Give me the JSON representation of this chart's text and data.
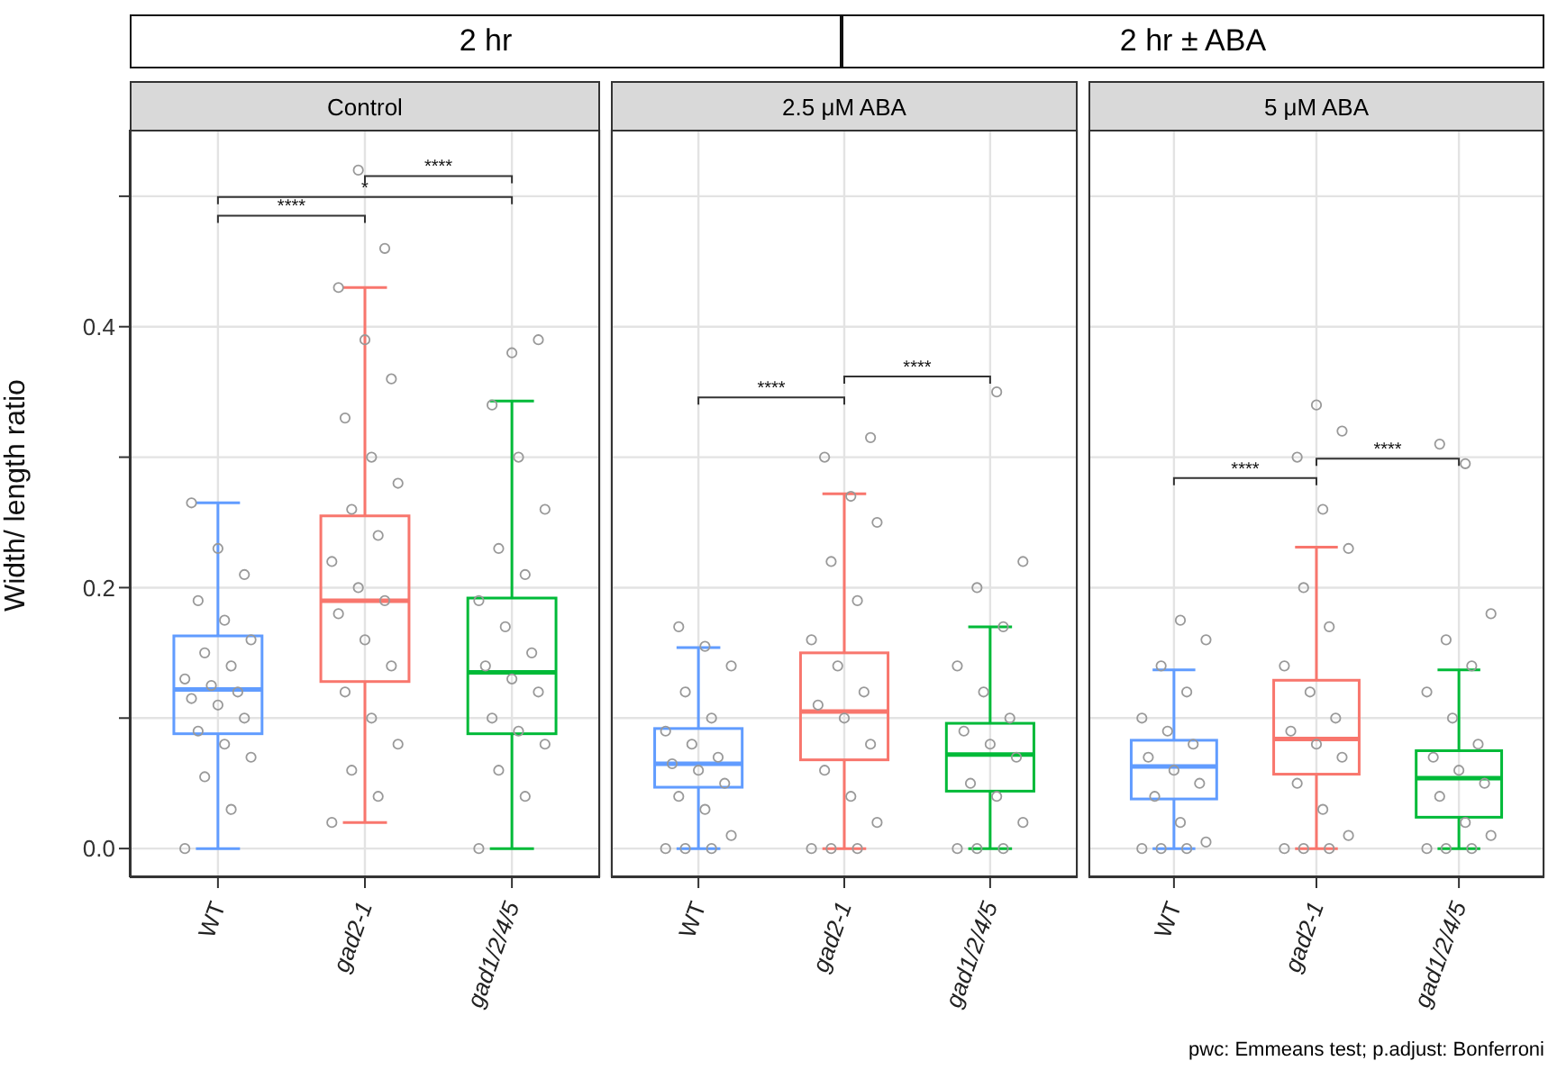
{
  "chart_data": [
    {
      "type": "box",
      "title": "Control",
      "ylabel": "Width/ length ratio",
      "categories": [
        "WT",
        "gad2-1",
        "gad1/2/4/5"
      ],
      "colors": [
        "#619cff",
        "#f8766d",
        "#00ba38"
      ],
      "boxes": [
        {
          "low": 0,
          "q1": 0.088,
          "median": 0.122,
          "q3": 0.163,
          "high": 0.265
        },
        {
          "low": 0.02,
          "q1": 0.128,
          "median": 0.19,
          "q3": 0.255,
          "high": 0.43
        },
        {
          "low": 0,
          "q1": 0.088,
          "median": 0.135,
          "q3": 0.192,
          "high": 0.343
        }
      ],
      "series": [
        {
          "type": "scatter",
          "color": "#999999",
          "x": [
            "WT",
            "WT",
            "WT",
            "WT",
            "WT",
            "WT",
            "WT",
            "WT",
            "WT",
            "WT",
            "WT",
            "WT",
            "WT",
            "WT",
            "WT",
            "WT",
            "WT",
            "WT",
            "WT",
            "WT",
            "gad2-1",
            "gad2-1",
            "gad2-1",
            "gad2-1",
            "gad2-1",
            "gad2-1",
            "gad2-1",
            "gad2-1",
            "gad2-1",
            "gad2-1",
            "gad2-1",
            "gad2-1",
            "gad2-1",
            "gad2-1",
            "gad2-1",
            "gad2-1",
            "gad2-1",
            "gad2-1",
            "gad2-1",
            "gad2-1",
            "gad2-1",
            "gad2-1",
            "gad1/2/4/5",
            "gad1/2/4/5",
            "gad1/2/4/5",
            "gad1/2/4/5",
            "gad1/2/4/5",
            "gad1/2/4/5",
            "gad1/2/4/5",
            "gad1/2/4/5",
            "gad1/2/4/5",
            "gad1/2/4/5",
            "gad1/2/4/5",
            "gad1/2/4/5",
            "gad1/2/4/5",
            "gad1/2/4/5",
            "gad1/2/4/5",
            "gad1/2/4/5",
            "gad1/2/4/5",
            "gad1/2/4/5",
            "gad1/2/4/5"
          ],
          "values": [
            0,
            0.03,
            0.055,
            0.07,
            0.08,
            0.09,
            0.1,
            0.11,
            0.115,
            0.12,
            0.125,
            0.13,
            0.14,
            0.15,
            0.16,
            0.175,
            0.19,
            0.21,
            0.23,
            0.265,
            0.02,
            0.04,
            0.06,
            0.08,
            0.1,
            0.12,
            0.14,
            0.16,
            0.18,
            0.19,
            0.2,
            0.22,
            0.24,
            0.26,
            0.28,
            0.3,
            0.33,
            0.36,
            0.39,
            0.43,
            0.46,
            0.52,
            0,
            0.04,
            0.06,
            0.08,
            0.09,
            0.1,
            0.12,
            0.13,
            0.14,
            0.15,
            0.17,
            0.19,
            0.21,
            0.23,
            0.26,
            0.3,
            0.34,
            0.39,
            0.38
          ]
        }
      ],
      "ylim": [
        -0.022,
        0.551
      ],
      "yticks": [
        {
          "value": 0,
          "label": "0.0"
        },
        {
          "value": 0.1,
          "label": null
        },
        {
          "value": 0.2,
          "label": "0.2"
        },
        {
          "value": 0.3,
          "label": null
        },
        {
          "value": 0.4,
          "label": "0.4"
        },
        {
          "value": 0.5,
          "label": null
        }
      ],
      "grid": true,
      "annotations": [
        "****",
        "*",
        "****",
        "2 hr"
      ]
    },
    {
      "type": "box",
      "title": "2.5 μM ABA",
      "categories": [
        "WT",
        "gad2-1",
        "gad1/2/4/5"
      ],
      "colors": [
        "#619cff",
        "#f8766d",
        "#00ba38"
      ],
      "boxes": [
        {
          "low": 0,
          "q1": 0.047,
          "median": 0.065,
          "q3": 0.092,
          "high": 0.154
        },
        {
          "low": 0,
          "q1": 0.068,
          "median": 0.105,
          "q3": 0.15,
          "high": 0.272
        },
        {
          "low": 0,
          "q1": 0.044,
          "median": 0.072,
          "q3": 0.096,
          "high": 0.17
        }
      ],
      "series": [
        {
          "type": "scatter",
          "color": "#999999",
          "x": [
            "WT",
            "WT",
            "WT",
            "WT",
            "WT",
            "WT",
            "WT",
            "WT",
            "WT",
            "WT",
            "WT",
            "WT",
            "WT",
            "WT",
            "WT",
            "WT",
            "WT",
            "gad2-1",
            "gad2-1",
            "gad2-1",
            "gad2-1",
            "gad2-1",
            "gad2-1",
            "gad2-1",
            "gad2-1",
            "gad2-1",
            "gad2-1",
            "gad2-1",
            "gad2-1",
            "gad2-1",
            "gad2-1",
            "gad2-1",
            "gad2-1",
            "gad2-1",
            "gad2-1",
            "gad1/2/4/5",
            "gad1/2/4/5",
            "gad1/2/4/5",
            "gad1/2/4/5",
            "gad1/2/4/5",
            "gad1/2/4/5",
            "gad1/2/4/5",
            "gad1/2/4/5",
            "gad1/2/4/5",
            "gad1/2/4/5",
            "gad1/2/4/5",
            "gad1/2/4/5",
            "gad1/2/4/5",
            "gad1/2/4/5",
            "gad1/2/4/5",
            "gad1/2/4/5"
          ],
          "values": [
            0,
            0,
            0,
            0.01,
            0.03,
            0.04,
            0.05,
            0.06,
            0.065,
            0.07,
            0.08,
            0.09,
            0.1,
            0.12,
            0.14,
            0.155,
            0.17,
            0,
            0,
            0,
            0.02,
            0.04,
            0.06,
            0.08,
            0.1,
            0.11,
            0.12,
            0.14,
            0.16,
            0.19,
            0.22,
            0.25,
            0.27,
            0.3,
            0.315,
            0,
            0,
            0,
            0.02,
            0.04,
            0.05,
            0.07,
            0.08,
            0.09,
            0.1,
            0.12,
            0.14,
            0.17,
            0.2,
            0.22,
            0.35
          ]
        }
      ],
      "ylim": [
        -0.022,
        0.551
      ],
      "yticks": [
        0,
        0.1,
        0.2,
        0.3,
        0.4,
        0.5
      ],
      "grid": true,
      "tick_labels": "x",
      "annotations": [
        "****",
        "****",
        "2 hr ± ABA"
      ]
    },
    {
      "type": "box",
      "title": "5 μM ABA",
      "categories": [
        "WT",
        "gad2-1",
        "gad1/2/4/5"
      ],
      "colors": [
        "#619cff",
        "#f8766d",
        "#00ba38"
      ],
      "boxes": [
        {
          "low": 0,
          "q1": 0.038,
          "median": 0.063,
          "q3": 0.083,
          "high": 0.137
        },
        {
          "low": 0,
          "q1": 0.057,
          "median": 0.084,
          "q3": 0.129,
          "high": 0.231
        },
        {
          "low": 0,
          "q1": 0.024,
          "median": 0.054,
          "q3": 0.075,
          "high": 0.137
        }
      ],
      "series": [
        {
          "type": "scatter",
          "color": "#999999",
          "x": [
            "WT",
            "WT",
            "WT",
            "WT",
            "WT",
            "WT",
            "WT",
            "WT",
            "WT",
            "WT",
            "WT",
            "WT",
            "WT",
            "WT",
            "WT",
            "WT",
            "gad2-1",
            "gad2-1",
            "gad2-1",
            "gad2-1",
            "gad2-1",
            "gad2-1",
            "gad2-1",
            "gad2-1",
            "gad2-1",
            "gad2-1",
            "gad2-1",
            "gad2-1",
            "gad2-1",
            "gad2-1",
            "gad2-1",
            "gad2-1",
            "gad2-1",
            "gad2-1",
            "gad2-1",
            "gad1/2/4/5",
            "gad1/2/4/5",
            "gad1/2/4/5",
            "gad1/2/4/5",
            "gad1/2/4/5",
            "gad1/2/4/5",
            "gad1/2/4/5",
            "gad1/2/4/5",
            "gad1/2/4/5",
            "gad1/2/4/5",
            "gad1/2/4/5",
            "gad1/2/4/5",
            "gad1/2/4/5",
            "gad1/2/4/5",
            "gad1/2/4/5",
            "gad1/2/4/5",
            "gad1/2/4/5"
          ],
          "values": [
            0,
            0,
            0,
            0.005,
            0.02,
            0.04,
            0.05,
            0.06,
            0.07,
            0.08,
            0.09,
            0.1,
            0.12,
            0.14,
            0.16,
            0.175,
            0,
            0,
            0,
            0.01,
            0.03,
            0.05,
            0.07,
            0.08,
            0.09,
            0.1,
            0.12,
            0.14,
            0.17,
            0.2,
            0.23,
            0.26,
            0.3,
            0.32,
            0.34,
            0,
            0,
            0,
            0.01,
            0.02,
            0.04,
            0.05,
            0.06,
            0.07,
            0.08,
            0.1,
            0.12,
            0.14,
            0.16,
            0.18,
            0.295,
            0.31
          ]
        }
      ],
      "ylim": [
        -0.022,
        0.551
      ],
      "yticks": [
        0,
        0.1,
        0.2,
        0.3,
        0.4,
        0.5
      ],
      "grid": true,
      "tick_labels": "x",
      "annotations": [
        "****",
        "****",
        "pwc: Emmeans test; p.adjust: Bonferroni"
      ]
    }
  ]
}
